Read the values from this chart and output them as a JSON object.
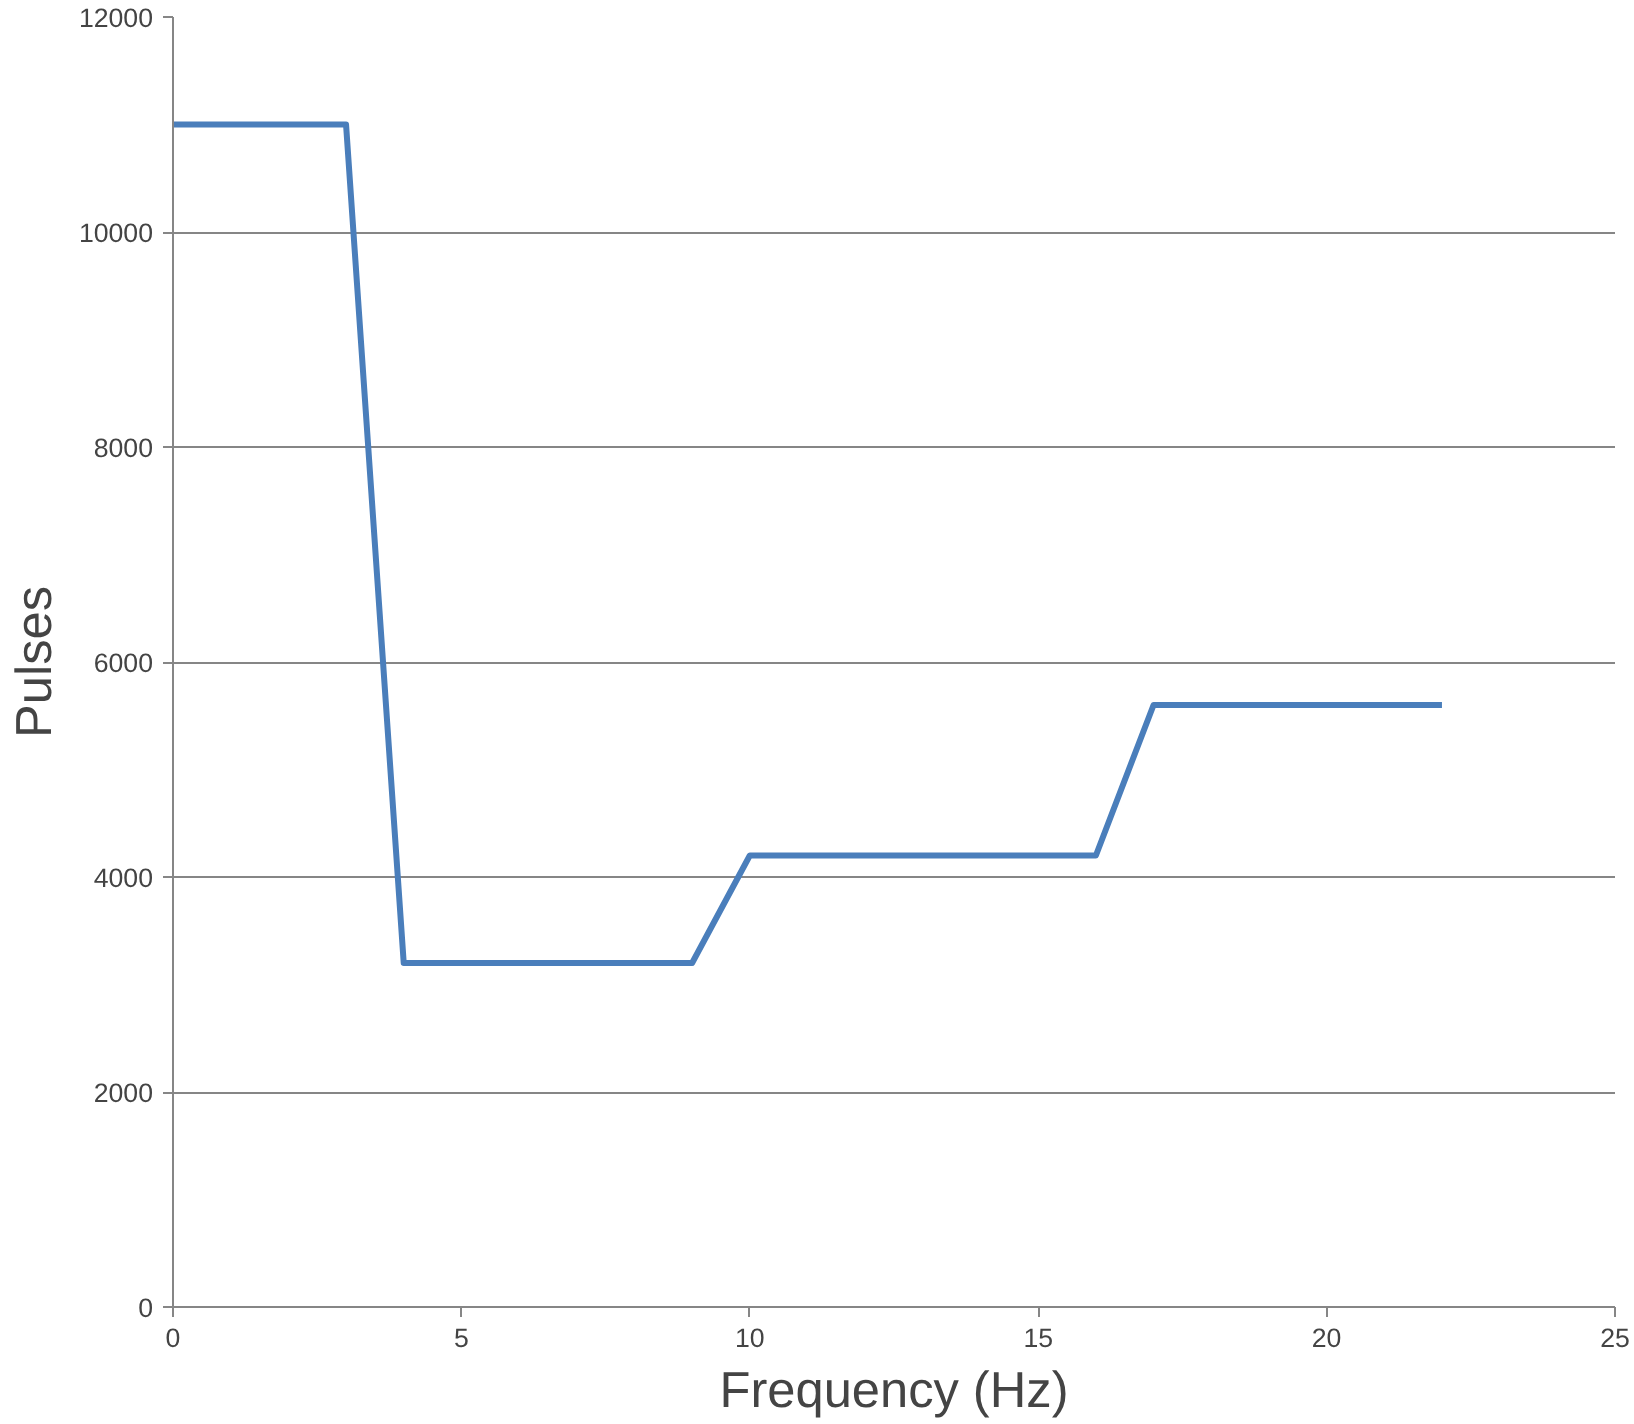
{
  "chart_data": {
    "type": "line",
    "xlabel": "Frequency (Hz)",
    "ylabel": "Pulses",
    "x": [
      0,
      3,
      4,
      9,
      10,
      16,
      17,
      22
    ],
    "series": [
      {
        "color": "#4a7ebb",
        "values": [
          11000,
          11000,
          3200,
          3200,
          4200,
          4200,
          5600,
          5600
        ]
      }
    ],
    "xlim": [
      0,
      25
    ],
    "xticks": [
      0,
      5,
      10,
      15,
      20,
      25
    ],
    "ylim": [
      0,
      12000
    ],
    "yticks": [
      0,
      2000,
      4000,
      6000,
      8000,
      10000,
      12000
    ],
    "grid": "y",
    "marker": "none",
    "line_style": "solid"
  }
}
